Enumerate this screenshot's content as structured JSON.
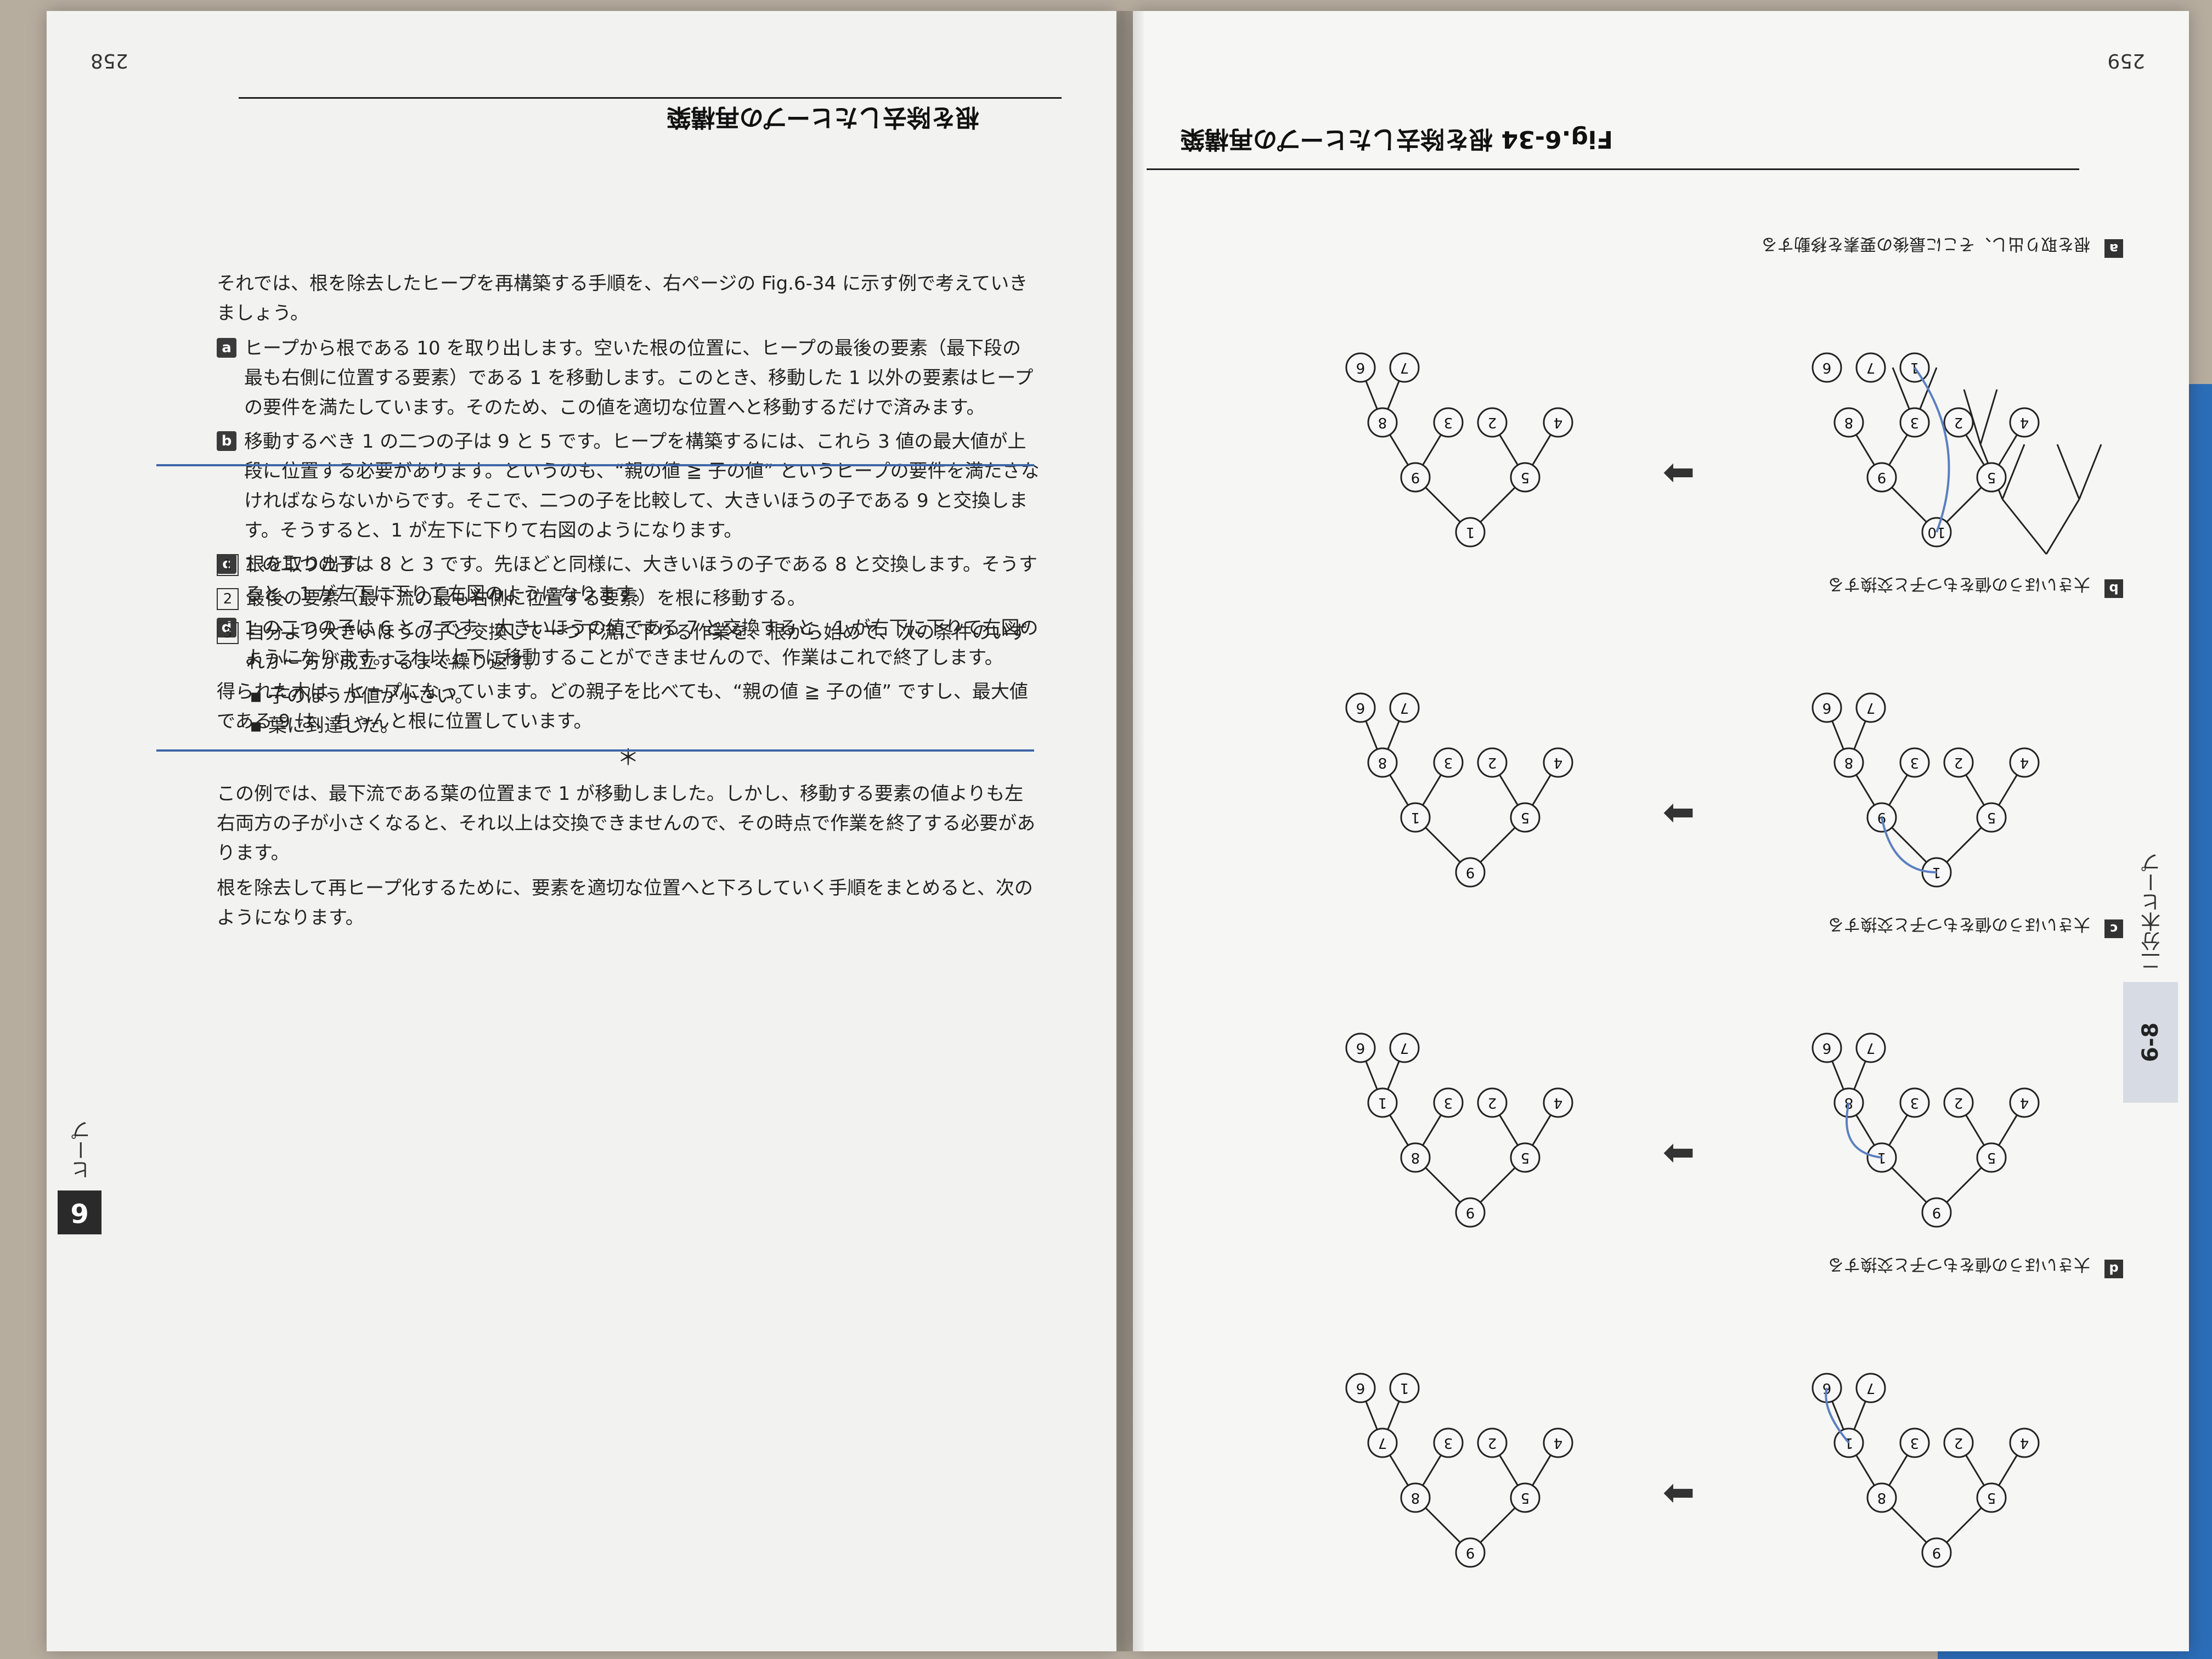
{
  "left_page": {
    "page_number": "259",
    "section_tab": "6-8",
    "side_label": "二分木ヒープ",
    "figure_caption": "Fig.6-34 根を除去したヒープの再構築",
    "panels": [
      {
        "letter": "a",
        "desc": "根を取り出し、そこに最後の要素を移動する"
      },
      {
        "letter": "b",
        "desc": "大きいほうの値をもつ子と交換する"
      },
      {
        "letter": "c",
        "desc": "大きいほうの値をもつ子と交換する"
      },
      {
        "letter": "d",
        "desc": "大きいほうの値をもつ子と交換する"
      }
    ]
  },
  "right_page": {
    "page_number": "258",
    "chapter_num": "6",
    "side_label": "ヒープ",
    "section_title": "根を除去したヒープの再構築",
    "intro": "それでは、根を除去したヒープを再構築する手順を、右ページの Fig.6-34 に示す例で考えていきましょう。",
    "steps": [
      {
        "badge": "a",
        "text": "ヒープから根である 10 を取り出します。空いた根の位置に、ヒープの最後の要素（最下段の最も右側に位置する要素）である 1 を移動します。このとき、移動した 1 以外の要素はヒープの要件を満たしています。そのため、この値を適切な位置へと移動するだけで済みます。"
      },
      {
        "badge": "b",
        "text": "移動するべき 1 の二つの子は 9 と 5 です。ヒープを構築するには、これら 3 値の最大値が上段に位置する必要があります。というのも、“親の値 ≧ 子の値” というヒープの要件を満たさなければならないからです。そこで、二つの子を比較して、大きいほうの子である 9 と交換します。そうすると、1 が左下に下りて右図のようになります。"
      },
      {
        "badge": "c",
        "text": "1 の二つの子は 8 と 3 です。先ほどと同様に、大きいほうの子である 8 と交換します。そうすると、1 が左下に下りて右図のようになります。"
      },
      {
        "badge": "d",
        "text": "1 の二つの子は 6 と 7 です。大きいほうの値である 7 と交換すると、1 が右下に下りて右図のようになります。これ以上下に移動することができませんので、作業はこれで終了します。"
      }
    ],
    "conclusion_1": "得られた木は、ヒープになっています。どの親子を比べても、“親の値 ≧ 子の値” ですし、最大値である 9 は、ちゃんと根に位置しています。",
    "asterisk": "＊",
    "conclusion_2": "この例では、最下流である葉の位置まで 1 が移動しました。しかし、移動する要素の値よりも左右両方の子が小さくなると、それ以上は交換できませんので、その時点で作業を終了する必要があります。",
    "summary_intro": "根を除去して再ヒープ化するために、要素を適切な位置へと下ろしていく手順をまとめると、次のようになります。",
    "summary_steps": [
      {
        "num": "1",
        "text": "根を取り出す。"
      },
      {
        "num": "2",
        "text": "最後の要素（最下流の最も右側に位置する要素）を根に移動する。"
      },
      {
        "num": "3",
        "text": "自分より大きいほうの子と交換して一つ下流に下りる作業を、根から始めて、次の条件のいずれか一方が成立するまで繰り返す。"
      }
    ],
    "bullets": [
      "子のほうが値が小さい。",
      "葉に到達した。"
    ]
  }
}
